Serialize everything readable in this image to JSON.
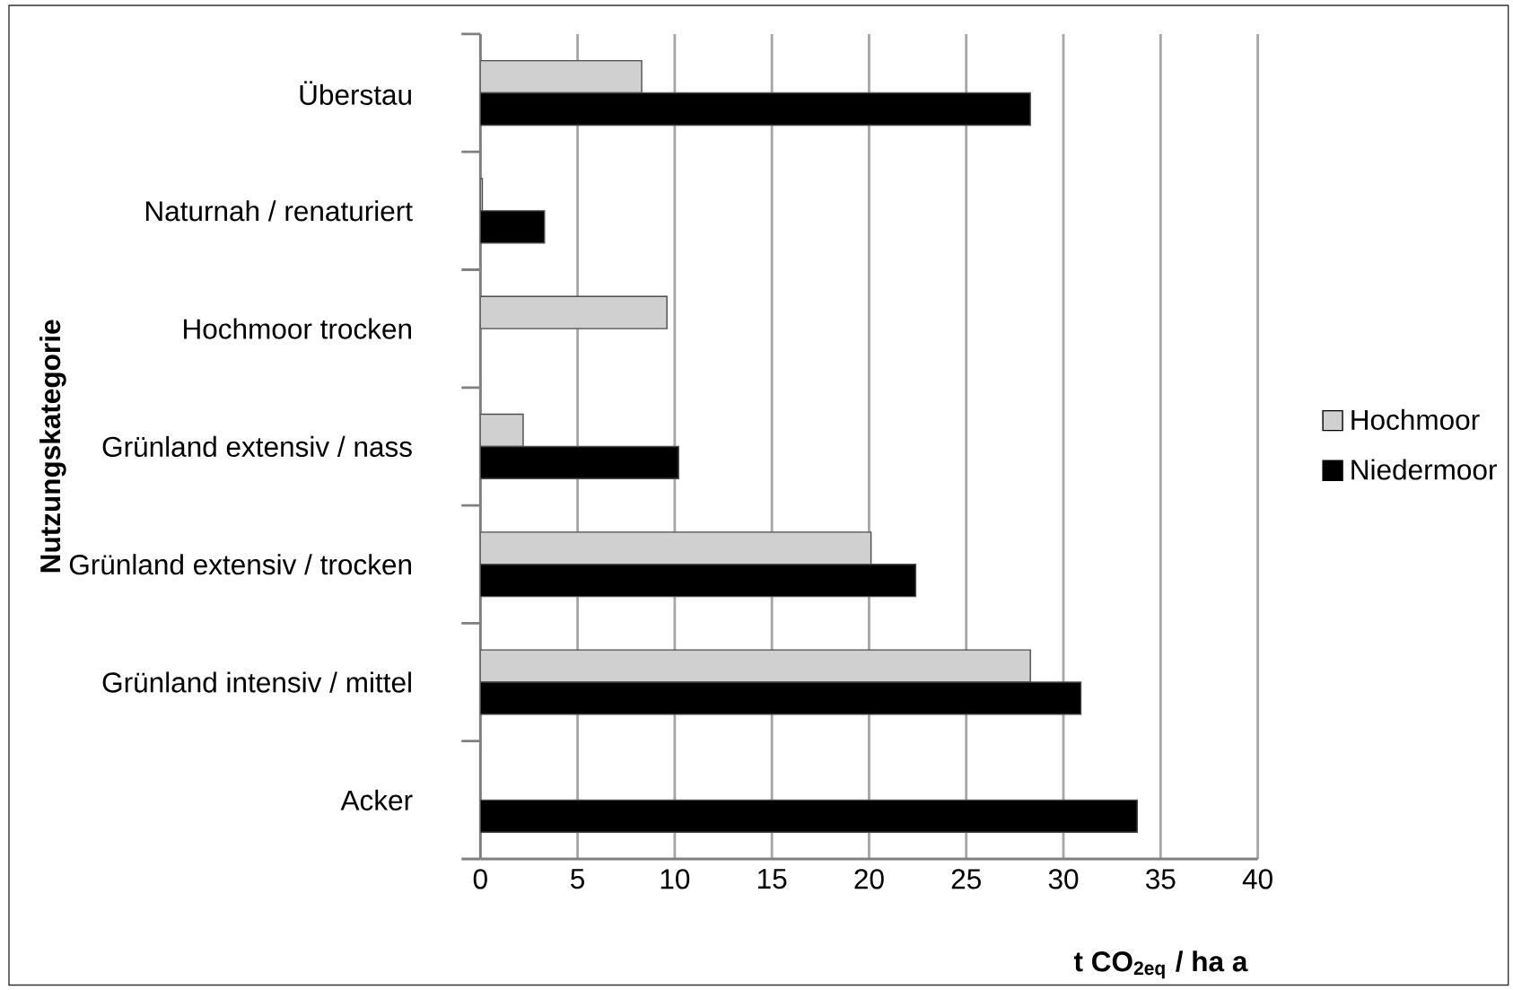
{
  "chart_data": {
    "type": "bar",
    "orientation": "horizontal",
    "xlabel": "t CO$_{2eq}$ / ha a",
    "ylabel": "Nutzungskategorie",
    "categories": [
      "Überstau",
      "Naturnah / renaturiert",
      "Hochmoor trocken",
      "Grünland extensiv / nass",
      "Grünland extensiv / trocken",
      "Grünland intensiv / mittel",
      "Acker"
    ],
    "series": [
      {
        "name": "Hochmoor",
        "color": "#d0d0d0",
        "values": [
          8.3,
          0.1,
          9.6,
          2.2,
          20.1,
          28.3,
          null
        ]
      },
      {
        "name": "Niedermoor",
        "color": "#000000",
        "values": [
          28.3,
          3.3,
          null,
          10.2,
          22.4,
          30.9,
          33.8
        ]
      }
    ],
    "xlim": [
      0,
      40
    ],
    "xticks": [
      0,
      5,
      10,
      15,
      20,
      25,
      30,
      35,
      40
    ],
    "grid": "x",
    "legend": "right"
  }
}
